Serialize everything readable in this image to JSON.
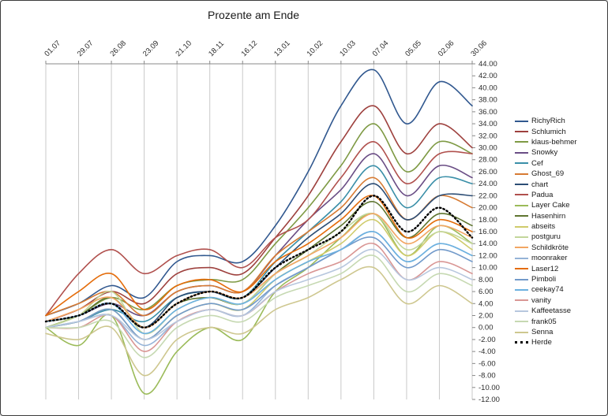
{
  "window": {
    "title": "Prozente am Ende"
  },
  "chart_data": {
    "type": "line",
    "title": "Prozente am Ende",
    "x_labels": [
      "01.07",
      "29.07",
      "26.08",
      "23.09",
      "21.10",
      "18.11",
      "16.12",
      "13.01",
      "10.02",
      "10.03",
      "07.04",
      "05.05",
      "02.06",
      "30.06"
    ],
    "y_tick_labels": [
      "44.00",
      "42.00",
      "40.00",
      "38.00",
      "36.00",
      "34.00",
      "32.00",
      "30.00",
      "28.00",
      "26.00",
      "24.00",
      "22.00",
      "20.00",
      "18.00",
      "16.00",
      "14.00",
      "12.00",
      "10.00",
      "8.00",
      "6.00",
      "4.00",
      "2.00",
      "0.00",
      "-2.00",
      "-4.00",
      "-6.00",
      "-8.00",
      "-10.00",
      "-12.00"
    ],
    "ylim": [
      -12,
      44
    ],
    "y_tick_step": 2,
    "grid": "vertical",
    "legend_position": "right",
    "axis_color": "#898989",
    "grid_color": "#c9c9c9",
    "series": [
      {
        "name": "RichyRich",
        "color": "#31588f",
        "values": [
          2,
          4,
          7,
          5,
          11,
          12,
          11,
          17,
          26,
          37,
          43,
          34,
          41,
          37
        ]
      },
      {
        "name": "Schlumich",
        "color": "#9e413e",
        "values": [
          1,
          3,
          6,
          4,
          9,
          10,
          9,
          15,
          22,
          31,
          37,
          29,
          34,
          30
        ]
      },
      {
        "name": "klaus-behmer",
        "color": "#7e9a44",
        "values": [
          0,
          2,
          5,
          3,
          7,
          8,
          8,
          14,
          20,
          27,
          34,
          26,
          31,
          29
        ]
      },
      {
        "name": "Snowky",
        "color": "#6a4d85",
        "values": [
          1,
          2,
          4,
          2,
          6,
          7,
          6,
          12,
          18,
          23,
          29,
          22,
          27,
          25
        ]
      },
      {
        "name": "Cef",
        "color": "#3a8fa8",
        "values": [
          0,
          1,
          3,
          1,
          5,
          6,
          5,
          11,
          16,
          21,
          27,
          20,
          25,
          24
        ]
      },
      {
        "name": "Ghost_69",
        "color": "#d77b33",
        "values": [
          2,
          4,
          6,
          2,
          6,
          7,
          6,
          12,
          16,
          20,
          25,
          18,
          22,
          20
        ]
      },
      {
        "name": "chart",
        "color": "#2c4d75",
        "values": [
          1,
          2,
          4,
          0,
          5,
          6,
          5,
          10,
          15,
          19,
          24,
          18,
          22,
          22
        ]
      },
      {
        "name": "Padua",
        "color": "#b0504d",
        "values": [
          2,
          9,
          13,
          9,
          12,
          13,
          10,
          15,
          18,
          25,
          31,
          24,
          29,
          29
        ]
      },
      {
        "name": "Layer Cake",
        "color": "#9bbb59",
        "values": [
          0,
          -3,
          2,
          -11,
          -4,
          0,
          -2,
          6,
          10,
          15,
          19,
          12,
          17,
          14
        ]
      },
      {
        "name": "Hasenhirn",
        "color": "#5f7530",
        "values": [
          1,
          2,
          5,
          0,
          4,
          5,
          4,
          9,
          13,
          17,
          21,
          15,
          19,
          17
        ]
      },
      {
        "name": "abseits",
        "color": "#cfcb6b",
        "values": [
          0,
          1,
          3,
          -2,
          2,
          4,
          3,
          8,
          11,
          14,
          18,
          12,
          16,
          13
        ]
      },
      {
        "name": "postguru",
        "color": "#c3d69b",
        "values": [
          0,
          2,
          6,
          -1,
          3,
          5,
          4,
          9,
          12,
          16,
          19,
          13,
          16,
          14
        ]
      },
      {
        "name": "Schildkröte",
        "color": "#f2a663",
        "values": [
          1,
          3,
          5,
          0,
          4,
          6,
          5,
          9,
          12,
          15,
          19,
          14,
          17,
          15
        ]
      },
      {
        "name": "moonraker",
        "color": "#95b3d7",
        "values": [
          0,
          1,
          2,
          -3,
          1,
          3,
          2,
          7,
          10,
          13,
          16,
          11,
          14,
          12
        ]
      },
      {
        "name": "Laser12",
        "color": "#e46c0a",
        "values": [
          2,
          6,
          9,
          3,
          7,
          8,
          6,
          11,
          14,
          18,
          22,
          15,
          18,
          16
        ]
      },
      {
        "name": "Pimboli",
        "color": "#729aca",
        "values": [
          0,
          1,
          3,
          -2,
          2,
          4,
          3,
          7,
          10,
          13,
          15,
          10,
          13,
          11
        ]
      },
      {
        "name": "ceekay74",
        "color": "#6bb1e0",
        "values": [
          1,
          2,
          4,
          -1,
          3,
          5,
          4,
          8,
          11,
          13,
          16,
          11,
          14,
          12
        ]
      },
      {
        "name": "vanity",
        "color": "#d99694",
        "values": [
          0,
          0,
          2,
          -4,
          1,
          3,
          2,
          6,
          9,
          11,
          14,
          8,
          11,
          9
        ]
      },
      {
        "name": "Kaffeetasse",
        "color": "#b7c7de",
        "values": [
          0,
          1,
          2,
          -2,
          1,
          3,
          2,
          6,
          8,
          10,
          13,
          8,
          10,
          8
        ]
      },
      {
        "name": "frank05",
        "color": "#c6d9b2",
        "values": [
          0,
          0,
          1,
          -5,
          0,
          2,
          1,
          5,
          7,
          9,
          12,
          6,
          9,
          7
        ]
      },
      {
        "name": "Senna",
        "color": "#cec78f",
        "values": [
          -1,
          -2,
          0,
          -8,
          -2,
          0,
          -1,
          3,
          5,
          8,
          10,
          4,
          7,
          4
        ]
      },
      {
        "name": "Herde",
        "color": "#000000",
        "dashed": true,
        "values": [
          1,
          2,
          4,
          0,
          4,
          6,
          5,
          10,
          13,
          16,
          22,
          16,
          20,
          15
        ]
      }
    ]
  }
}
